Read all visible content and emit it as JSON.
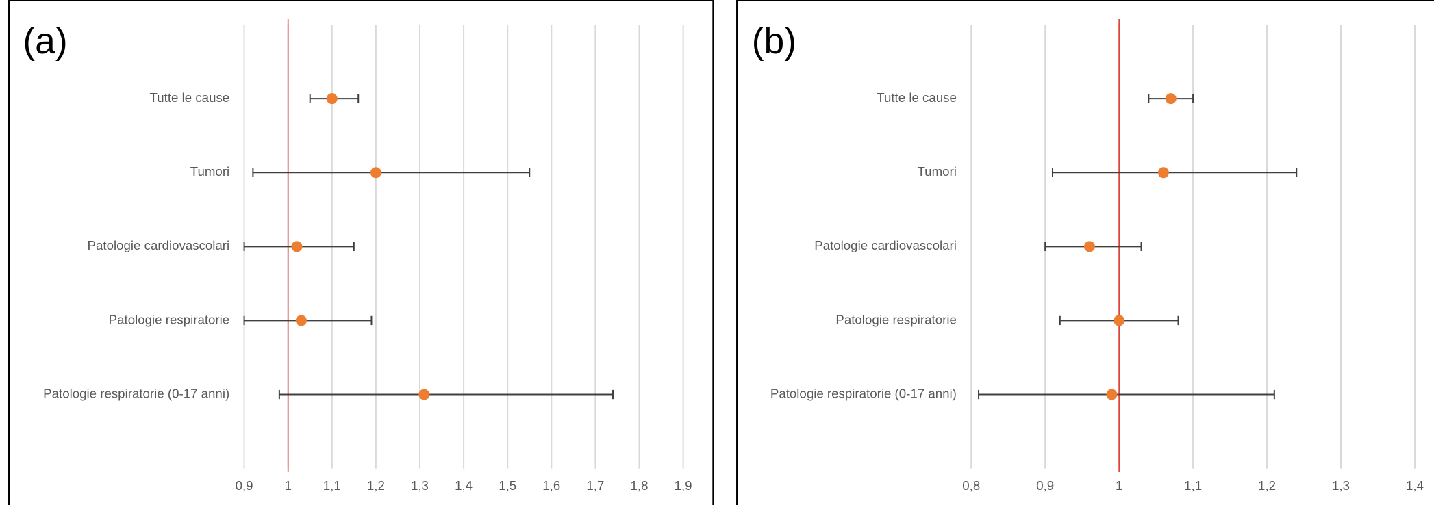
{
  "chart_data": [
    {
      "type": "forest",
      "panel_label": "(a)",
      "categories": [
        "Tutte le cause",
        "Tumori",
        "Patologie cardiovascolari",
        "Patologie respiratorie",
        "Patologie respiratorie (0-17 anni)"
      ],
      "values": [
        1.1,
        1.2,
        1.02,
        1.03,
        1.31
      ],
      "lower": [
        1.05,
        0.92,
        0.9,
        0.9,
        0.98
      ],
      "upper": [
        1.16,
        1.55,
        1.15,
        1.19,
        1.74
      ],
      "color": "#ed7d31",
      "refline": 1,
      "refline_color": "#e03c31",
      "grid": true,
      "xlim": [
        0.9,
        1.9
      ],
      "xticks": [
        {
          "value": 0.9,
          "label": "0,9"
        },
        1,
        {
          "value": 1.1,
          "label": "1,1"
        },
        {
          "value": 1.2,
          "label": "1,2"
        },
        {
          "value": 1.3,
          "label": "1,3"
        },
        {
          "value": 1.4,
          "label": "1,4"
        },
        {
          "value": 1.5,
          "label": "1,5"
        },
        {
          "value": 1.6,
          "label": "1,6"
        },
        {
          "value": 1.7,
          "label": "1,7"
        },
        {
          "value": 1.8,
          "label": "1,8"
        },
        {
          "value": 1.9,
          "label": "1,9"
        }
      ]
    },
    {
      "type": "forest",
      "panel_label": "(b)",
      "categories": [
        "Tutte le cause",
        "Tumori",
        "Patologie cardiovascolari",
        "Patologie respiratorie",
        "Patologie respiratorie (0-17 anni)"
      ],
      "values": [
        1.07,
        1.06,
        0.96,
        1.0,
        0.99
      ],
      "lower": [
        1.04,
        0.91,
        0.9,
        0.92,
        0.81
      ],
      "upper": [
        1.1,
        1.24,
        1.03,
        1.08,
        1.21
      ],
      "color": "#ed7d31",
      "refline": 1,
      "refline_color": "#e03c31",
      "grid": true,
      "xlim": [
        0.8,
        1.4
      ],
      "xticks": [
        {
          "value": 0.8,
          "label": "0,8"
        },
        {
          "value": 0.9,
          "label": "0,9"
        },
        1,
        {
          "value": 1.1,
          "label": "1,1"
        },
        {
          "value": 1.2,
          "label": "1,2"
        },
        {
          "value": 1.3,
          "label": "1,3"
        },
        {
          "value": 1.4,
          "label": "1,4"
        }
      ]
    }
  ]
}
